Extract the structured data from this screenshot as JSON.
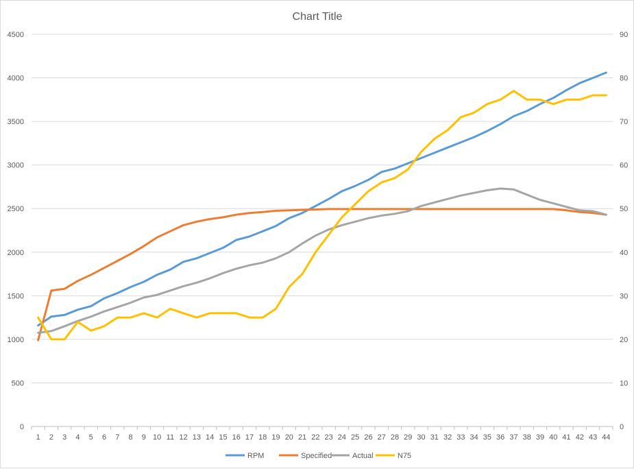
{
  "chart_data": {
    "type": "line",
    "title": "Chart Title",
    "xlabel": "",
    "ylabel": "",
    "categories": [
      "1",
      "2",
      "3",
      "4",
      "5",
      "6",
      "7",
      "8",
      "9",
      "10",
      "11",
      "12",
      "13",
      "14",
      "15",
      "16",
      "17",
      "18",
      "19",
      "20",
      "21",
      "22",
      "23",
      "24",
      "25",
      "26",
      "27",
      "28",
      "29",
      "30",
      "31",
      "32",
      "33",
      "34",
      "35",
      "36",
      "37",
      "38",
      "39",
      "40",
      "41",
      "42",
      "43",
      "44"
    ],
    "ylim": [
      0,
      4500
    ],
    "y2lim": [
      0,
      90
    ],
    "yticks": [
      "0",
      "500",
      "1000",
      "1500",
      "2000",
      "2500",
      "3000",
      "3500",
      "4000",
      "4500"
    ],
    "y2ticks": [
      "0",
      "10",
      "20",
      "30",
      "40",
      "50",
      "60",
      "70",
      "80",
      "90"
    ],
    "grid": true,
    "legend_position": "bottom",
    "series": [
      {
        "name": "RPM",
        "axis": "left",
        "color": "#5b9bd5",
        "values": [
          1160,
          1260,
          1280,
          1340,
          1380,
          1470,
          1530,
          1600,
          1660,
          1740,
          1800,
          1890,
          1930,
          1990,
          2050,
          2140,
          2180,
          2240,
          2300,
          2390,
          2450,
          2530,
          2610,
          2700,
          2760,
          2830,
          2920,
          2960,
          3020,
          3080,
          3140,
          3200,
          3260,
          3320,
          3390,
          3470,
          3560,
          3620,
          3700,
          3770,
          3860,
          3940,
          4000,
          4060
        ]
      },
      {
        "name": "Specified",
        "axis": "left",
        "color": "#ed7d31",
        "values": [
          990,
          1560,
          1580,
          1670,
          1740,
          1820,
          1900,
          1980,
          2070,
          2170,
          2240,
          2310,
          2350,
          2380,
          2400,
          2430,
          2450,
          2460,
          2475,
          2480,
          2485,
          2490,
          2495,
          2495,
          2495,
          2495,
          2495,
          2495,
          2495,
          2495,
          2495,
          2495,
          2495,
          2495,
          2495,
          2495,
          2495,
          2495,
          2495,
          2495,
          2480,
          2460,
          2450,
          2430
        ]
      },
      {
        "name": "Actual",
        "axis": "left",
        "color": "#a5a5a5",
        "values": [
          1075,
          1095,
          1150,
          1210,
          1260,
          1320,
          1370,
          1420,
          1480,
          1510,
          1560,
          1610,
          1650,
          1700,
          1760,
          1810,
          1850,
          1880,
          1930,
          2000,
          2100,
          2190,
          2260,
          2310,
          2350,
          2390,
          2420,
          2440,
          2470,
          2530,
          2570,
          2610,
          2650,
          2680,
          2710,
          2730,
          2720,
          2660,
          2600,
          2560,
          2520,
          2480,
          2470,
          2430
        ]
      },
      {
        "name": "N75",
        "axis": "right",
        "color": "#ffc000",
        "values": [
          25,
          20,
          20,
          24,
          22,
          23,
          25,
          25,
          26,
          25,
          27,
          26,
          25,
          26,
          26,
          26,
          25,
          25,
          27,
          32,
          35,
          40,
          44,
          48,
          51,
          54,
          56,
          57,
          59,
          63,
          66,
          68,
          71,
          72,
          74,
          75,
          77,
          75,
          75,
          74,
          75,
          75,
          76,
          76
        ]
      }
    ]
  }
}
